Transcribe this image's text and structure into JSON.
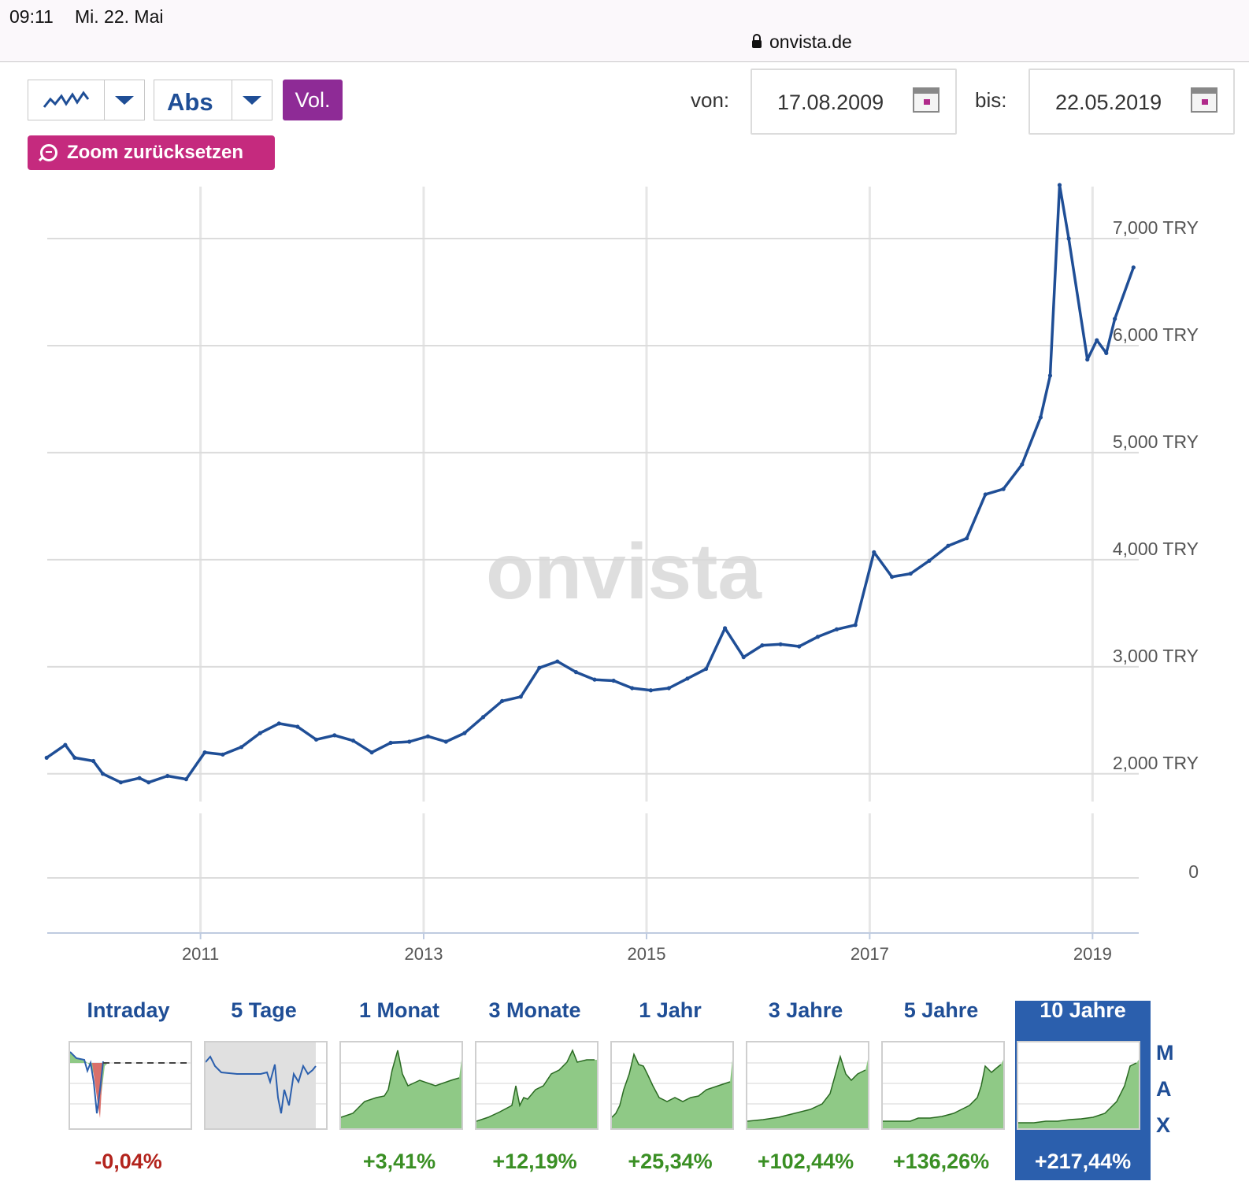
{
  "status": {
    "time": "09:11",
    "date": "Mi. 22. Mai",
    "url": "onvista.de"
  },
  "toolbar": {
    "chart_type_icon": "line-chart-icon",
    "scale_label": "Abs",
    "vol_label": "Vol.",
    "zoom_reset_label": "Zoom zurücksetzen",
    "from_label": "von:",
    "from_value": "17.08.2009",
    "to_label": "bis:",
    "to_value": "22.05.2019"
  },
  "watermark": "onvista",
  "chart_data": {
    "type": "line",
    "title": "",
    "xlabel": "",
    "ylabel": "",
    "x_ticks": [
      "2011",
      "2013",
      "2015",
      "2017",
      "2019"
    ],
    "y_ticks": [
      "2,000 TRY",
      "3,000 TRY",
      "4,000 TRY",
      "5,000 TRY",
      "6,000 TRY",
      "7,000 TRY"
    ],
    "volume_tick": "0",
    "ylim": [
      1800,
      7500
    ],
    "xlim": [
      "2009-08-17",
      "2019-05-22"
    ],
    "grid": true,
    "color": "#1f4e96",
    "series": [
      {
        "x": [
          "2009-08",
          "2009-10",
          "2009-11",
          "2010-01",
          "2010-02",
          "2010-04",
          "2010-06",
          "2010-07",
          "2010-09",
          "2010-11",
          "2011-01",
          "2011-03",
          "2011-05",
          "2011-07",
          "2011-09",
          "2011-11",
          "2012-01",
          "2012-03",
          "2012-05",
          "2012-07",
          "2012-09",
          "2012-11",
          "2013-01",
          "2013-03",
          "2013-05",
          "2013-07",
          "2013-09",
          "2013-11",
          "2014-01",
          "2014-03",
          "2014-05",
          "2014-07",
          "2014-09",
          "2014-11",
          "2015-01",
          "2015-03",
          "2015-05",
          "2015-07",
          "2015-09",
          "2015-11",
          "2016-01",
          "2016-03",
          "2016-05",
          "2016-07",
          "2016-09",
          "2016-11",
          "2017-01",
          "2017-03",
          "2017-05",
          "2017-07",
          "2017-09",
          "2017-11",
          "2018-01",
          "2018-03",
          "2018-05",
          "2018-07",
          "2018-08",
          "2018-09",
          "2018-10",
          "2018-12",
          "2019-01",
          "2019-02",
          "2019-03",
          "2019-05"
        ],
        "y": [
          2150,
          2270,
          2150,
          2120,
          2000,
          1920,
          1960,
          1920,
          1980,
          1950,
          2200,
          2180,
          2250,
          2380,
          2470,
          2440,
          2320,
          2360,
          2310,
          2200,
          2290,
          2300,
          2350,
          2300,
          2380,
          2530,
          2680,
          2720,
          2990,
          3050,
          2950,
          2880,
          2870,
          2800,
          2780,
          2800,
          2890,
          2980,
          3360,
          3090,
          3200,
          3210,
          3190,
          3280,
          3350,
          3390,
          4070,
          3840,
          3870,
          3990,
          4130,
          4200,
          4610,
          4660,
          4890,
          5330,
          5720,
          7500,
          7000,
          5870,
          6050,
          5930,
          6250,
          6730
        ]
      }
    ]
  },
  "periods": [
    {
      "label": "Intraday",
      "change": "-0,04%",
      "color": "#b3241d",
      "active": false
    },
    {
      "label": "5 Tage",
      "change": "",
      "color": "#3a8f24",
      "active": false
    },
    {
      "label": "1 Monat",
      "change": "+3,41%",
      "color": "#3a8f24",
      "active": false
    },
    {
      "label": "3 Monate",
      "change": "+12,19%",
      "color": "#3a8f24",
      "active": false
    },
    {
      "label": "1 Jahr",
      "change": "+25,34%",
      "color": "#3a8f24",
      "active": false
    },
    {
      "label": "3 Jahre",
      "change": "+102,44%",
      "color": "#3a8f24",
      "active": false
    },
    {
      "label": "5 Jahre",
      "change": "+136,26%",
      "color": "#3a8f24",
      "active": false
    },
    {
      "label": "10 Jahre",
      "change": "+217,44%",
      "color": "#ffffff",
      "active": true
    }
  ],
  "max_label": [
    "M",
    "A",
    "X"
  ]
}
